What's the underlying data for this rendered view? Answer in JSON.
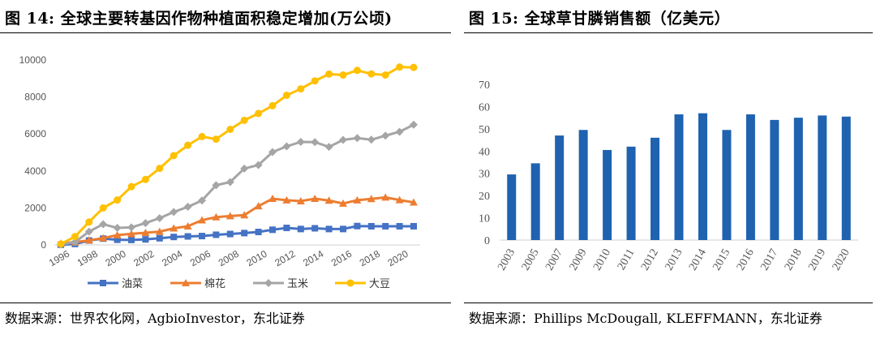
{
  "left": {
    "title": "图  14: 全球主要转基因作物种植面积稳定增加(万公顷)",
    "source": "数据来源：世界农化网，AgbioInvestor，东北证券",
    "chart_data": {
      "type": "line",
      "title": "",
      "xlabel": "",
      "ylabel": "",
      "ylim": [
        0,
        10000
      ],
      "yticks": [
        0,
        2000,
        4000,
        6000,
        8000,
        10000
      ],
      "x": [
        1996,
        1997,
        1998,
        1999,
        2000,
        2001,
        2002,
        2003,
        2004,
        2005,
        2006,
        2007,
        2008,
        2009,
        2010,
        2011,
        2012,
        2013,
        2014,
        2015,
        2016,
        2017,
        2018,
        2019,
        2020,
        2021
      ],
      "xtick_labels": [
        "1996",
        "1998",
        "2000",
        "2002",
        "2004",
        "2006",
        "2008",
        "2010",
        "2012",
        "2014",
        "2016",
        "2018",
        "2020"
      ],
      "grid": false,
      "legend_position": "bottom",
      "series": [
        {
          "name": "油菜",
          "color": "#4472C4",
          "marker": "square",
          "values": [
            10,
            50,
            240,
            340,
            280,
            270,
            300,
            360,
            430,
            460,
            480,
            550,
            590,
            640,
            700,
            820,
            920,
            860,
            900,
            860,
            860,
            1020,
            1010,
            1010,
            1010,
            1010
          ]
        },
        {
          "name": "棉花",
          "color": "#ED7D31",
          "marker": "triangle",
          "values": [
            80,
            150,
            250,
            370,
            530,
            600,
            660,
            720,
            900,
            1010,
            1340,
            1500,
            1560,
            1610,
            2100,
            2500,
            2420,
            2370,
            2500,
            2400,
            2240,
            2420,
            2490,
            2570,
            2430,
            2300
          ]
        },
        {
          "name": "玉米",
          "color": "#A5A5A5",
          "marker": "diamond",
          "values": [
            30,
            150,
            720,
            1120,
            920,
            950,
            1180,
            1450,
            1780,
            2060,
            2400,
            3230,
            3400,
            4130,
            4320,
            5020,
            5330,
            5570,
            5560,
            5300,
            5680,
            5780,
            5690,
            5910,
            6120,
            6500
          ]
        },
        {
          "name": "大豆",
          "color": "#FFC000",
          "marker": "circle",
          "values": [
            50,
            450,
            1240,
            2000,
            2430,
            3150,
            3540,
            4140,
            4830,
            5390,
            5860,
            5720,
            6250,
            6740,
            7110,
            7530,
            8090,
            8440,
            8870,
            9240,
            9190,
            9440,
            9250,
            9190,
            9620,
            9600
          ]
        }
      ]
    }
  },
  "right": {
    "title": "图  15:  全球草甘膦销售额（亿美元）",
    "source": "数据来源：Phillips McDougall, KLEFFMANN，东北证券",
    "chart_data": {
      "type": "bar",
      "title": "",
      "xlabel": "",
      "ylabel": "",
      "ylim": [
        0,
        70
      ],
      "yticks": [
        0,
        10,
        20,
        30,
        40,
        50,
        60,
        70
      ],
      "grid": false,
      "color": "#1F62B0",
      "categories": [
        "2003",
        "2005",
        "2007",
        "2009",
        "2010",
        "2011",
        "2012",
        "2013",
        "2014",
        "2015",
        "2016",
        "2017",
        "2018",
        "2019",
        "2020"
      ],
      "values": [
        29.5,
        34.5,
        47,
        49.5,
        40.5,
        42,
        46,
        56.5,
        57,
        49.5,
        56.5,
        54,
        55,
        56,
        55.5
      ]
    }
  }
}
